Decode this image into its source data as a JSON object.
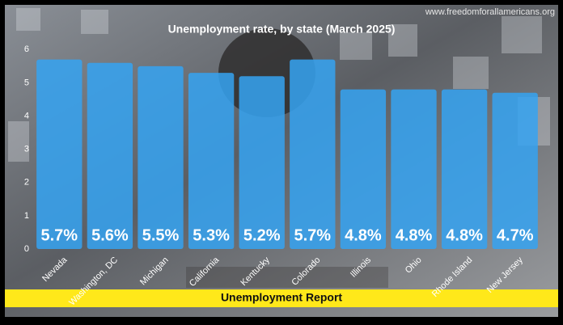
{
  "chart_data": {
    "type": "bar",
    "title": "Unemployment rate, by state (March 2025)",
    "watermark": "www.freedomforallamericans.org",
    "banner": "Unemployment Report",
    "categories": [
      "Nevada",
      "Washington, DC",
      "Michigan",
      "California",
      "Kentucky",
      "Colorado",
      "Illinois",
      "Ohio",
      "Rhode Island",
      "New Jersey"
    ],
    "values": [
      5.7,
      5.6,
      5.5,
      5.3,
      5.2,
      5.7,
      4.8,
      4.8,
      4.8,
      4.7
    ],
    "value_labels": [
      "5.7%",
      "5.6%",
      "5.5%",
      "5.3%",
      "5.2%",
      "5.7%",
      "4.8%",
      "4.8%",
      "4.8%",
      "4.7%"
    ],
    "color": "#35a3f2",
    "ylim": [
      0,
      6.3
    ],
    "yticks": [
      0,
      1,
      2,
      3,
      4,
      5,
      6
    ],
    "grid": false
  }
}
